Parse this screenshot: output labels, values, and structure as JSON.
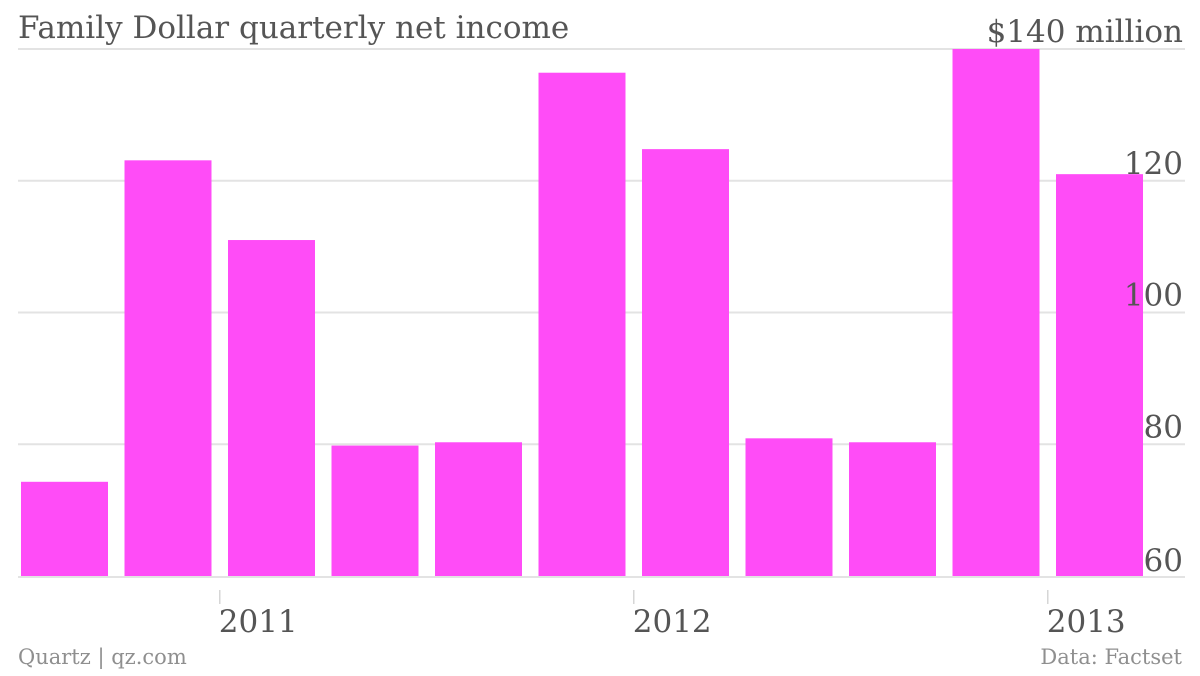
{
  "chart_data": {
    "type": "bar",
    "title": "Family Dollar quarterly net income",
    "ylabel": "$140 million",
    "ylim": [
      60,
      140
    ],
    "yticks": [
      {
        "value": 60,
        "label": "60"
      },
      {
        "value": 80,
        "label": "80"
      },
      {
        "value": 100,
        "label": "100"
      },
      {
        "value": 120,
        "label": "120"
      },
      {
        "value": 140,
        "label": "$140 million"
      }
    ],
    "xtick_labels": [
      {
        "label": "2011",
        "after_bar_index": 1
      },
      {
        "label": "2012",
        "after_bar_index": 5
      },
      {
        "label": "2013",
        "after_bar_index": 9
      }
    ],
    "values": [
      74.3,
      123.1,
      111.0,
      79.8,
      80.3,
      136.4,
      124.8,
      80.9,
      80.3,
      140.0,
      121.0
    ],
    "grid": true,
    "bar_color": "#ff4cf7"
  },
  "footer": {
    "credit": "Quartz | qz.com",
    "source": "Data: Factset"
  }
}
